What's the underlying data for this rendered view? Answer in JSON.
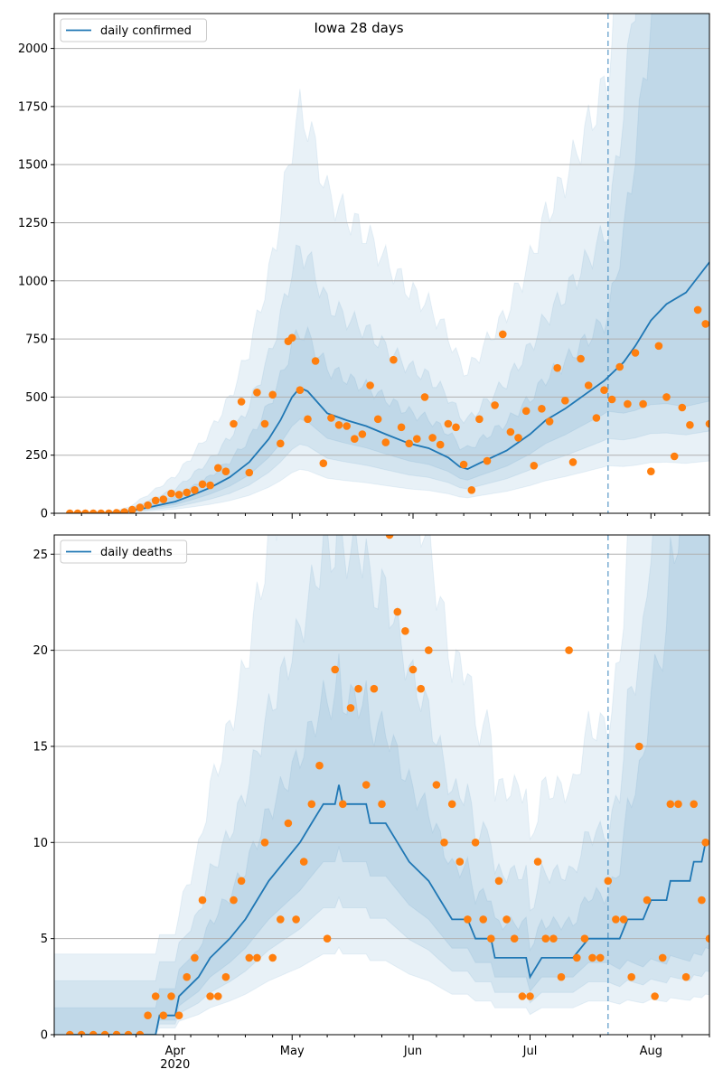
{
  "chart_data": [
    {
      "type": "line",
      "title": "Iowa 28 days",
      "legend": {
        "label": "daily confirmed",
        "placement": "top-left"
      },
      "ylim": [
        0,
        2150
      ],
      "grid": "horizontal",
      "y_ticks": [
        0,
        250,
        500,
        750,
        1000,
        1250,
        1500,
        1750,
        2000
      ],
      "x_ticks": [
        {
          "date": "2020-04-01",
          "label": "Apr",
          "sublabel": "2020"
        },
        {
          "date": "2020-05-01",
          "label": "May"
        },
        {
          "date": "2020-06-01",
          "label": "Jun"
        },
        {
          "date": "2020-07-01",
          "label": "Jul"
        },
        {
          "date": "2020-08-01",
          "label": "Aug"
        }
      ],
      "forecast_start": "2020-07-21",
      "series_line": {
        "name": "daily confirmed",
        "color": "#1f77b4",
        "points": [
          [
            "2020-03-05",
            0
          ],
          [
            "2020-03-15",
            2
          ],
          [
            "2020-03-20",
            8
          ],
          [
            "2020-03-25",
            25
          ],
          [
            "2020-04-01",
            50
          ],
          [
            "2020-04-05",
            75
          ],
          [
            "2020-04-10",
            110
          ],
          [
            "2020-04-15",
            155
          ],
          [
            "2020-04-20",
            220
          ],
          [
            "2020-04-25",
            320
          ],
          [
            "2020-04-28",
            400
          ],
          [
            "2020-05-01",
            500
          ],
          [
            "2020-05-03",
            540
          ],
          [
            "2020-05-05",
            525
          ],
          [
            "2020-05-10",
            430
          ],
          [
            "2020-05-15",
            400
          ],
          [
            "2020-05-20",
            375
          ],
          [
            "2020-05-25",
            340
          ],
          [
            "2020-05-31",
            300
          ],
          [
            "2020-06-05",
            280
          ],
          [
            "2020-06-10",
            240
          ],
          [
            "2020-06-13",
            200
          ],
          [
            "2020-06-15",
            190
          ],
          [
            "2020-06-18",
            215
          ],
          [
            "2020-06-25",
            270
          ],
          [
            "2020-07-01",
            340
          ],
          [
            "2020-07-05",
            400
          ],
          [
            "2020-07-10",
            450
          ],
          [
            "2020-07-15",
            510
          ],
          [
            "2020-07-20",
            570
          ],
          [
            "2020-07-25",
            650
          ],
          [
            "2020-07-28",
            720
          ],
          [
            "2020-08-01",
            830
          ],
          [
            "2020-08-05",
            900
          ],
          [
            "2020-08-10",
            950
          ],
          [
            "2020-08-16",
            1080
          ]
        ]
      },
      "points": {
        "color": "#ff7f0e",
        "values": [
          [
            "2020-03-05",
            0
          ],
          [
            "2020-03-07",
            0
          ],
          [
            "2020-03-09",
            0
          ],
          [
            "2020-03-11",
            0
          ],
          [
            "2020-03-13",
            0
          ],
          [
            "2020-03-15",
            0
          ],
          [
            "2020-03-17",
            2
          ],
          [
            "2020-03-19",
            5
          ],
          [
            "2020-03-21",
            15
          ],
          [
            "2020-03-23",
            25
          ],
          [
            "2020-03-25",
            35
          ],
          [
            "2020-03-27",
            55
          ],
          [
            "2020-03-29",
            60
          ],
          [
            "2020-03-31",
            85
          ],
          [
            "2020-04-02",
            80
          ],
          [
            "2020-04-04",
            90
          ],
          [
            "2020-04-06",
            100
          ],
          [
            "2020-04-08",
            125
          ],
          [
            "2020-04-10",
            120
          ],
          [
            "2020-04-12",
            195
          ],
          [
            "2020-04-14",
            180
          ],
          [
            "2020-04-16",
            385
          ],
          [
            "2020-04-18",
            480
          ],
          [
            "2020-04-20",
            175
          ],
          [
            "2020-04-22",
            520
          ],
          [
            "2020-04-24",
            385
          ],
          [
            "2020-04-26",
            510
          ],
          [
            "2020-04-28",
            300
          ],
          [
            "2020-04-30",
            740
          ],
          [
            "2020-05-01",
            755
          ],
          [
            "2020-05-03",
            530
          ],
          [
            "2020-05-05",
            405
          ],
          [
            "2020-05-07",
            655
          ],
          [
            "2020-05-09",
            215
          ],
          [
            "2020-05-11",
            410
          ],
          [
            "2020-05-13",
            380
          ],
          [
            "2020-05-15",
            375
          ],
          [
            "2020-05-17",
            320
          ],
          [
            "2020-05-19",
            340
          ],
          [
            "2020-05-21",
            550
          ],
          [
            "2020-05-23",
            405
          ],
          [
            "2020-05-25",
            305
          ],
          [
            "2020-05-27",
            660
          ],
          [
            "2020-05-29",
            370
          ],
          [
            "2020-05-31",
            300
          ],
          [
            "2020-06-02",
            320
          ],
          [
            "2020-06-04",
            500
          ],
          [
            "2020-06-06",
            325
          ],
          [
            "2020-06-08",
            295
          ],
          [
            "2020-06-10",
            385
          ],
          [
            "2020-06-12",
            370
          ],
          [
            "2020-06-14",
            210
          ],
          [
            "2020-06-16",
            100
          ],
          [
            "2020-06-18",
            405
          ],
          [
            "2020-06-20",
            225
          ],
          [
            "2020-06-22",
            465
          ],
          [
            "2020-06-24",
            770
          ],
          [
            "2020-06-26",
            350
          ],
          [
            "2020-06-28",
            325
          ],
          [
            "2020-06-30",
            440
          ],
          [
            "2020-07-02",
            205
          ],
          [
            "2020-07-04",
            450
          ],
          [
            "2020-07-06",
            395
          ],
          [
            "2020-07-08",
            625
          ],
          [
            "2020-07-10",
            485
          ],
          [
            "2020-07-12",
            220
          ],
          [
            "2020-07-14",
            665
          ],
          [
            "2020-07-16",
            550
          ],
          [
            "2020-07-18",
            410
          ],
          [
            "2020-07-20",
            530
          ],
          [
            "2020-07-22",
            490
          ],
          [
            "2020-07-24",
            630
          ],
          [
            "2020-07-26",
            470
          ],
          [
            "2020-07-28",
            690
          ],
          [
            "2020-07-30",
            470
          ],
          [
            "2020-08-01",
            180
          ],
          [
            "2020-08-03",
            720
          ],
          [
            "2020-08-05",
            500
          ],
          [
            "2020-08-07",
            245
          ],
          [
            "2020-08-09",
            455
          ],
          [
            "2020-08-11",
            380
          ],
          [
            "2020-08-13",
            875
          ],
          [
            "2020-08-15",
            815
          ],
          [
            "2020-08-16",
            385
          ]
        ]
      }
    },
    {
      "type": "line",
      "legend": {
        "label": "daily deaths",
        "placement": "top-left"
      },
      "ylim": [
        0,
        26
      ],
      "grid": "horizontal",
      "y_ticks": [
        0,
        5,
        10,
        15,
        20,
        25
      ],
      "x_ticks": [
        {
          "date": "2020-04-01",
          "label": "Apr",
          "sublabel": "2020"
        },
        {
          "date": "2020-05-01",
          "label": "May"
        },
        {
          "date": "2020-06-01",
          "label": "Jun"
        },
        {
          "date": "2020-07-01",
          "label": "Jul"
        },
        {
          "date": "2020-08-01",
          "label": "Aug"
        }
      ],
      "forecast_start": "2020-07-21",
      "series_line": {
        "name": "daily deaths",
        "color": "#1f77b4",
        "points": [
          [
            "2020-03-05",
            0
          ],
          [
            "2020-03-27",
            0
          ],
          [
            "2020-03-28",
            1
          ],
          [
            "2020-04-01",
            1
          ],
          [
            "2020-04-02",
            2
          ],
          [
            "2020-04-07",
            3
          ],
          [
            "2020-04-10",
            4
          ],
          [
            "2020-04-15",
            5
          ],
          [
            "2020-04-19",
            6
          ],
          [
            "2020-04-22",
            7
          ],
          [
            "2020-04-25",
            8
          ],
          [
            "2020-04-29",
            9
          ],
          [
            "2020-05-03",
            10
          ],
          [
            "2020-05-06",
            11
          ],
          [
            "2020-05-09",
            12
          ],
          [
            "2020-05-12",
            12
          ],
          [
            "2020-05-13",
            13
          ],
          [
            "2020-05-14",
            12
          ],
          [
            "2020-05-20",
            12
          ],
          [
            "2020-05-21",
            11
          ],
          [
            "2020-05-25",
            11
          ],
          [
            "2020-05-28",
            10
          ],
          [
            "2020-05-31",
            9
          ],
          [
            "2020-06-05",
            8
          ],
          [
            "2020-06-08",
            7
          ],
          [
            "2020-06-11",
            6
          ],
          [
            "2020-06-15",
            6
          ],
          [
            "2020-06-17",
            5
          ],
          [
            "2020-06-21",
            5
          ],
          [
            "2020-06-22",
            4
          ],
          [
            "2020-06-30",
            4
          ],
          [
            "2020-07-01",
            3
          ],
          [
            "2020-07-04",
            4
          ],
          [
            "2020-07-12",
            4
          ],
          [
            "2020-07-16",
            5
          ],
          [
            "2020-07-24",
            5
          ],
          [
            "2020-07-26",
            6
          ],
          [
            "2020-07-30",
            6
          ],
          [
            "2020-08-01",
            7
          ],
          [
            "2020-08-05",
            7
          ],
          [
            "2020-08-06",
            8
          ],
          [
            "2020-08-11",
            8
          ],
          [
            "2020-08-12",
            9
          ],
          [
            "2020-08-14",
            9
          ],
          [
            "2020-08-15",
            10
          ],
          [
            "2020-08-16",
            10
          ]
        ]
      },
      "points": {
        "color": "#ff7f0e",
        "values": [
          [
            "2020-03-05",
            0
          ],
          [
            "2020-03-08",
            0
          ],
          [
            "2020-03-11",
            0
          ],
          [
            "2020-03-14",
            0
          ],
          [
            "2020-03-17",
            0
          ],
          [
            "2020-03-20",
            0
          ],
          [
            "2020-03-23",
            0
          ],
          [
            "2020-03-25",
            1
          ],
          [
            "2020-03-27",
            2
          ],
          [
            "2020-03-29",
            1
          ],
          [
            "2020-03-31",
            2
          ],
          [
            "2020-04-02",
            1
          ],
          [
            "2020-04-04",
            3
          ],
          [
            "2020-04-06",
            4
          ],
          [
            "2020-04-08",
            7
          ],
          [
            "2020-04-10",
            2
          ],
          [
            "2020-04-12",
            2
          ],
          [
            "2020-04-14",
            3
          ],
          [
            "2020-04-16",
            7
          ],
          [
            "2020-04-18",
            8
          ],
          [
            "2020-04-20",
            4
          ],
          [
            "2020-04-22",
            4
          ],
          [
            "2020-04-24",
            10
          ],
          [
            "2020-04-26",
            4
          ],
          [
            "2020-04-28",
            6
          ],
          [
            "2020-04-30",
            11
          ],
          [
            "2020-05-02",
            6
          ],
          [
            "2020-05-04",
            9
          ],
          [
            "2020-05-06",
            12
          ],
          [
            "2020-05-08",
            14
          ],
          [
            "2020-05-10",
            5
          ],
          [
            "2020-05-12",
            19
          ],
          [
            "2020-05-14",
            12
          ],
          [
            "2020-05-16",
            17
          ],
          [
            "2020-05-18",
            18
          ],
          [
            "2020-05-20",
            13
          ],
          [
            "2020-05-22",
            18
          ],
          [
            "2020-05-24",
            12
          ],
          [
            "2020-05-26",
            26
          ],
          [
            "2020-05-28",
            22
          ],
          [
            "2020-05-30",
            21
          ],
          [
            "2020-06-01",
            19
          ],
          [
            "2020-06-03",
            18
          ],
          [
            "2020-06-05",
            20
          ],
          [
            "2020-06-07",
            13
          ],
          [
            "2020-06-09",
            10
          ],
          [
            "2020-06-11",
            12
          ],
          [
            "2020-06-13",
            9
          ],
          [
            "2020-06-15",
            6
          ],
          [
            "2020-06-17",
            10
          ],
          [
            "2020-06-19",
            6
          ],
          [
            "2020-06-21",
            5
          ],
          [
            "2020-06-23",
            8
          ],
          [
            "2020-06-25",
            6
          ],
          [
            "2020-06-27",
            5
          ],
          [
            "2020-06-29",
            2
          ],
          [
            "2020-07-01",
            2
          ],
          [
            "2020-07-03",
            9
          ],
          [
            "2020-07-05",
            5
          ],
          [
            "2020-07-07",
            5
          ],
          [
            "2020-07-09",
            3
          ],
          [
            "2020-07-11",
            20
          ],
          [
            "2020-07-13",
            4
          ],
          [
            "2020-07-15",
            5
          ],
          [
            "2020-07-17",
            4
          ],
          [
            "2020-07-19",
            4
          ],
          [
            "2020-07-21",
            8
          ],
          [
            "2020-07-23",
            6
          ],
          [
            "2020-07-25",
            6
          ],
          [
            "2020-07-27",
            3
          ],
          [
            "2020-07-29",
            15
          ],
          [
            "2020-07-31",
            7
          ],
          [
            "2020-08-02",
            2
          ],
          [
            "2020-08-04",
            4
          ],
          [
            "2020-08-06",
            12
          ],
          [
            "2020-08-08",
            12
          ],
          [
            "2020-08-10",
            3
          ],
          [
            "2020-08-12",
            12
          ],
          [
            "2020-08-14",
            7
          ],
          [
            "2020-08-15",
            10
          ],
          [
            "2020-08-16",
            5
          ]
        ]
      }
    }
  ]
}
